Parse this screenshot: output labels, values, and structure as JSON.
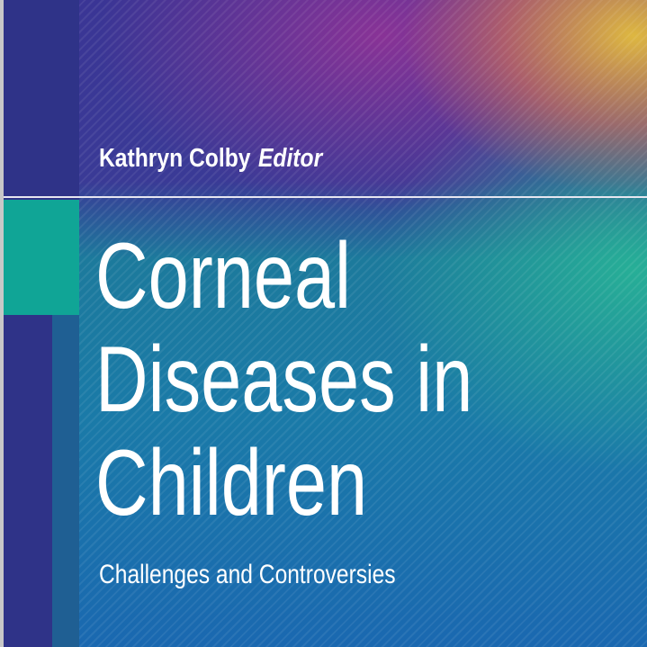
{
  "cover": {
    "author": "Kathryn Colby",
    "role": "Editor",
    "title_lines": [
      "Corneal",
      "Diseases in",
      "Children"
    ],
    "subtitle": "Challenges and Controversies"
  },
  "colors": {
    "indigo": "#2f3388",
    "teal": "#10a596",
    "blue": "#1a68b0",
    "orange": "#e6be3c"
  }
}
